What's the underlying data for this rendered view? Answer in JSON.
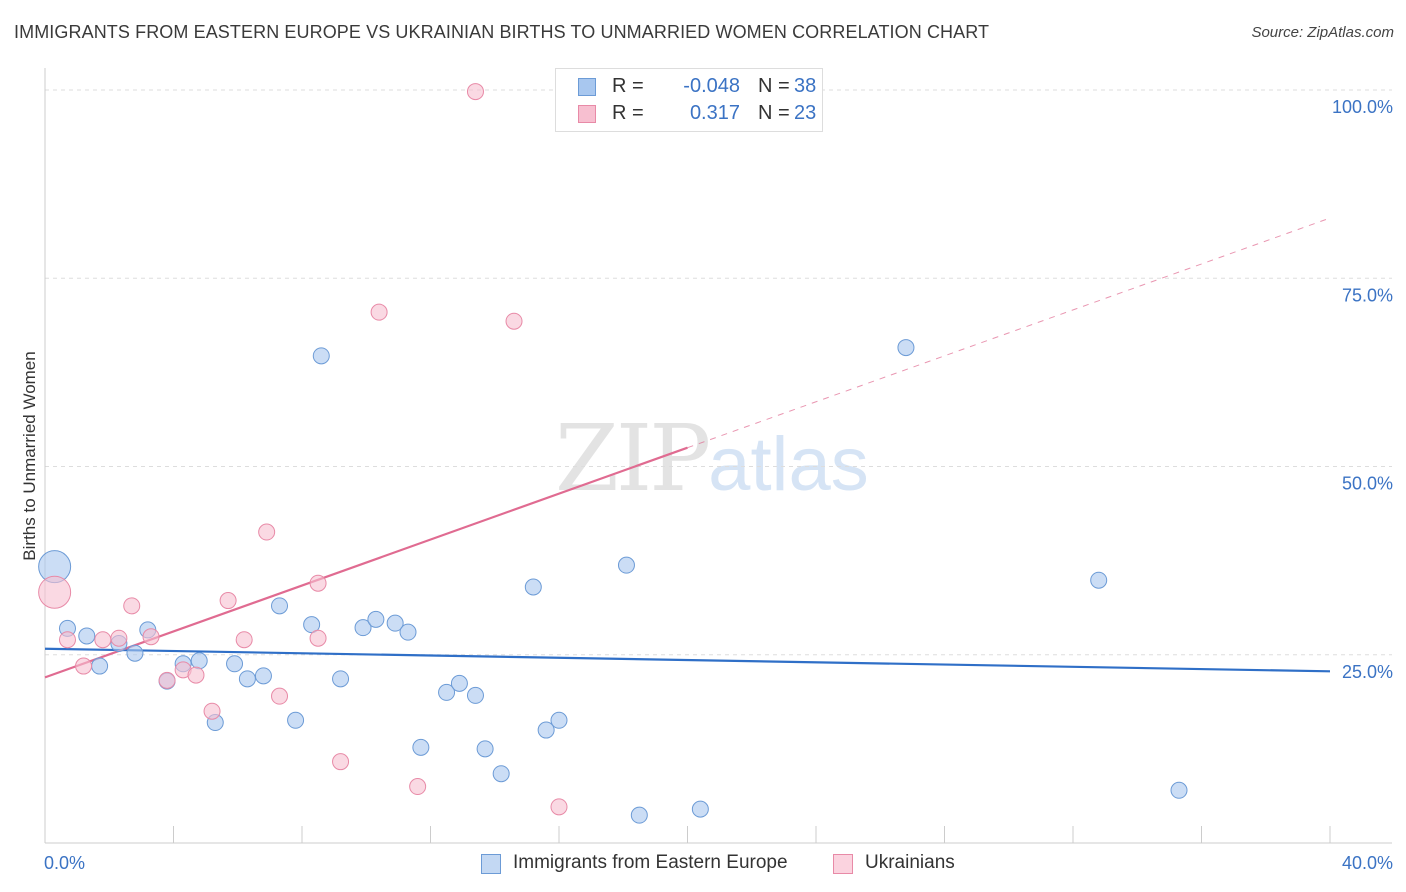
{
  "title": "IMMIGRANTS FROM EASTERN EUROPE VS UKRAINIAN BIRTHS TO UNMARRIED WOMEN CORRELATION CHART",
  "source": "Source: ZipAtlas.com",
  "watermark": {
    "zip": "ZIP",
    "atlas": "atlas"
  },
  "legend": {
    "rows": [
      {
        "r_label": "R =",
        "r_value": "-0.048",
        "n_label": "N =",
        "n_value": "38",
        "color": "#a8c7ef",
        "border": "#6c9bd6"
      },
      {
        "r_label": "R =",
        "r_value": "0.317",
        "n_label": "N =",
        "n_value": "23",
        "color": "#f7bfd0",
        "border": "#e88aa7"
      }
    ]
  },
  "bottom_legend": [
    {
      "label": "Immigrants from Eastern Europe",
      "color": "#c3d8f3",
      "border": "#6c9bd6"
    },
    {
      "label": "Ukrainians",
      "color": "#fbd3df",
      "border": "#e88aa7"
    }
  ],
  "chart_data": {
    "type": "scatter",
    "title": "IMMIGRANTS FROM EASTERN EUROPE VS UKRAINIAN BIRTHS TO UNMARRIED WOMEN CORRELATION CHART",
    "xlabel": "",
    "ylabel": "Births to Unmarried Women",
    "xlim": [
      0,
      40
    ],
    "ylim": [
      0,
      102
    ],
    "x_tick_labels": [
      {
        "value": 0,
        "label": "0.0%"
      },
      {
        "value": 40,
        "label": "40.0%"
      }
    ],
    "y_tick_labels": [
      {
        "value": 25,
        "label": "25.0%"
      },
      {
        "value": 50,
        "label": "50.0%"
      },
      {
        "value": 75,
        "label": "75.0%"
      },
      {
        "value": 100,
        "label": "100.0%"
      }
    ],
    "x_minor_ticks": [
      4,
      8,
      12,
      16,
      20,
      24,
      28,
      32,
      36,
      40
    ],
    "grid_y": [
      25,
      50,
      75,
      100
    ],
    "series": [
      {
        "name": "Immigrants from Eastern Europe",
        "color": "#a8c7ef",
        "stroke": "#6c9bd6",
        "trend": {
          "x0": 0,
          "y0": 25.8,
          "x1": 40,
          "y1": 22.8,
          "color": "#2f6fc7",
          "dashed_from": null
        },
        "points": [
          {
            "x": 0.3,
            "y": 36.7,
            "size": "large"
          },
          {
            "x": 0.7,
            "y": 28.5
          },
          {
            "x": 1.3,
            "y": 27.5
          },
          {
            "x": 1.7,
            "y": 23.5
          },
          {
            "x": 2.3,
            "y": 26.5
          },
          {
            "x": 2.8,
            "y": 25.2
          },
          {
            "x": 3.2,
            "y": 28.3
          },
          {
            "x": 3.8,
            "y": 21.5
          },
          {
            "x": 4.3,
            "y": 23.8
          },
          {
            "x": 4.8,
            "y": 24.2
          },
          {
            "x": 5.3,
            "y": 16.0
          },
          {
            "x": 5.9,
            "y": 23.8
          },
          {
            "x": 6.3,
            "y": 21.8
          },
          {
            "x": 6.8,
            "y": 22.2
          },
          {
            "x": 7.3,
            "y": 31.5
          },
          {
            "x": 7.8,
            "y": 16.3
          },
          {
            "x": 8.3,
            "y": 29.0
          },
          {
            "x": 8.6,
            "y": 64.7
          },
          {
            "x": 9.2,
            "y": 21.8
          },
          {
            "x": 9.9,
            "y": 28.6
          },
          {
            "x": 10.3,
            "y": 29.7
          },
          {
            "x": 10.9,
            "y": 29.2
          },
          {
            "x": 11.3,
            "y": 28.0
          },
          {
            "x": 11.7,
            "y": 12.7
          },
          {
            "x": 12.5,
            "y": 20.0
          },
          {
            "x": 12.9,
            "y": 21.2
          },
          {
            "x": 13.4,
            "y": 19.6
          },
          {
            "x": 13.7,
            "y": 12.5
          },
          {
            "x": 14.2,
            "y": 9.2
          },
          {
            "x": 15.2,
            "y": 34.0
          },
          {
            "x": 15.6,
            "y": 15.0
          },
          {
            "x": 16.0,
            "y": 16.3
          },
          {
            "x": 18.1,
            "y": 36.9
          },
          {
            "x": 18.5,
            "y": 3.7
          },
          {
            "x": 20.4,
            "y": 4.5
          },
          {
            "x": 26.8,
            "y": 65.8
          },
          {
            "x": 32.8,
            "y": 34.9
          },
          {
            "x": 35.3,
            "y": 7.0
          }
        ]
      },
      {
        "name": "Ukrainians",
        "color": "#f7bfd0",
        "stroke": "#e88aa7",
        "trend": {
          "x0": 0,
          "y0": 22.0,
          "x1": 40,
          "y1": 83.0,
          "color": "#e06b91",
          "dashed_from": 20
        },
        "points": [
          {
            "x": 0.3,
            "y": 33.3,
            "size": "large"
          },
          {
            "x": 0.7,
            "y": 27.0
          },
          {
            "x": 1.2,
            "y": 23.5
          },
          {
            "x": 1.8,
            "y": 27.0
          },
          {
            "x": 2.3,
            "y": 27.2
          },
          {
            "x": 2.7,
            "y": 31.5
          },
          {
            "x": 3.3,
            "y": 27.4
          },
          {
            "x": 3.8,
            "y": 21.6
          },
          {
            "x": 4.3,
            "y": 23.0
          },
          {
            "x": 4.7,
            "y": 22.3
          },
          {
            "x": 5.2,
            "y": 17.5
          },
          {
            "x": 5.7,
            "y": 32.2
          },
          {
            "x": 6.2,
            "y": 27.0
          },
          {
            "x": 6.9,
            "y": 41.3
          },
          {
            "x": 7.3,
            "y": 19.5
          },
          {
            "x": 8.5,
            "y": 34.5
          },
          {
            "x": 8.5,
            "y": 27.2
          },
          {
            "x": 9.2,
            "y": 10.8
          },
          {
            "x": 10.4,
            "y": 70.5
          },
          {
            "x": 11.6,
            "y": 7.5
          },
          {
            "x": 13.4,
            "y": 99.8
          },
          {
            "x": 14.6,
            "y": 69.3
          },
          {
            "x": 16.0,
            "y": 4.8
          }
        ]
      }
    ]
  }
}
